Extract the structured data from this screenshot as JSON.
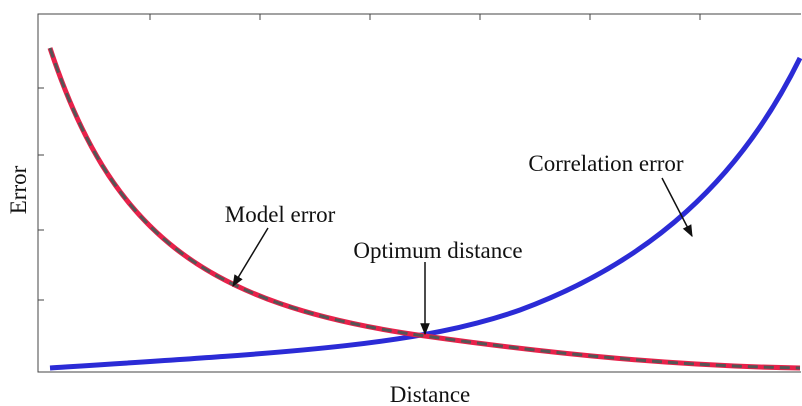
{
  "chart_data": {
    "type": "line",
    "x_label": "Distance",
    "y_label": "Error",
    "annotations": [
      "Model error",
      "Optimum distance",
      "Correlation error"
    ]
  }
}
